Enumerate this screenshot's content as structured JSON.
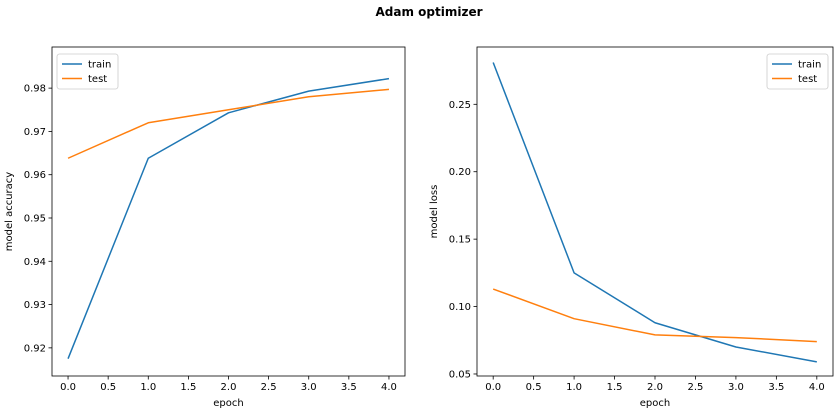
{
  "figure": {
    "title": "Adam optimizer"
  },
  "chart_data": [
    {
      "type": "line",
      "title": "",
      "xlabel": "epoch",
      "ylabel": "model accuracy",
      "xlim": [
        -0.2,
        4.2
      ],
      "ylim": [
        0.9135,
        0.9895
      ],
      "xticks": [
        0.0,
        0.5,
        1.0,
        1.5,
        2.0,
        2.5,
        3.0,
        3.5,
        4.0
      ],
      "xtick_labels": [
        "0.0",
        "0.5",
        "1.0",
        "1.5",
        "2.0",
        "2.5",
        "3.0",
        "3.5",
        "4.0"
      ],
      "yticks": [
        0.92,
        0.93,
        0.94,
        0.95,
        0.96,
        0.97,
        0.98
      ],
      "ytick_labels": [
        "0.92",
        "0.93",
        "0.94",
        "0.95",
        "0.96",
        "0.97",
        "0.98"
      ],
      "grid": false,
      "legend_position": "top-left",
      "x": [
        0,
        1,
        2,
        3,
        4
      ],
      "series": [
        {
          "name": "train",
          "color": "#1f77b4",
          "values": [
            0.9175,
            0.9638,
            0.9743,
            0.9793,
            0.9822
          ]
        },
        {
          "name": "test",
          "color": "#ff7f0e",
          "values": [
            0.9638,
            0.972,
            0.975,
            0.978,
            0.9797
          ]
        }
      ]
    },
    {
      "type": "line",
      "title": "",
      "xlabel": "epoch",
      "ylabel": "model loss",
      "xlim": [
        -0.2,
        4.2
      ],
      "ylim": [
        0.0485,
        0.2925
      ],
      "xticks": [
        0.0,
        0.5,
        1.0,
        1.5,
        2.0,
        2.5,
        3.0,
        3.5,
        4.0
      ],
      "xtick_labels": [
        "0.0",
        "0.5",
        "1.0",
        "1.5",
        "2.0",
        "2.5",
        "3.0",
        "3.5",
        "4.0"
      ],
      "yticks": [
        0.05,
        0.1,
        0.15,
        0.2,
        0.25
      ],
      "ytick_labels": [
        "0.05",
        "0.10",
        "0.15",
        "0.20",
        "0.25"
      ],
      "grid": false,
      "legend_position": "top-right",
      "x": [
        0,
        1,
        2,
        3,
        4
      ],
      "series": [
        {
          "name": "train",
          "color": "#1f77b4",
          "values": [
            0.281,
            0.125,
            0.088,
            0.07,
            0.059
          ]
        },
        {
          "name": "test",
          "color": "#ff7f0e",
          "values": [
            0.113,
            0.091,
            0.079,
            0.077,
            0.074
          ]
        }
      ]
    }
  ]
}
